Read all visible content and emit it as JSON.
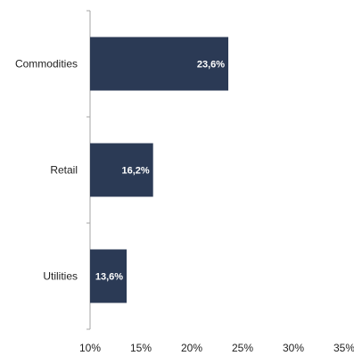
{
  "chart_data": {
    "type": "bar",
    "orientation": "horizontal",
    "categories": [
      "Commodities",
      "Retail",
      "Utilities"
    ],
    "values": [
      23.6,
      16.2,
      13.6
    ],
    "data_labels": [
      "23,6%",
      "16,2%",
      "13,6%"
    ],
    "x_ticks": [
      "10%",
      "15%",
      "20%",
      "25%",
      "30%",
      "35%"
    ],
    "xlim": [
      10,
      35
    ],
    "x_tick_values": [
      10,
      15,
      20,
      25,
      30,
      35
    ],
    "grid": false,
    "legend": "none",
    "bar_color": "#2b3a55",
    "label_color": "#ffffff"
  }
}
